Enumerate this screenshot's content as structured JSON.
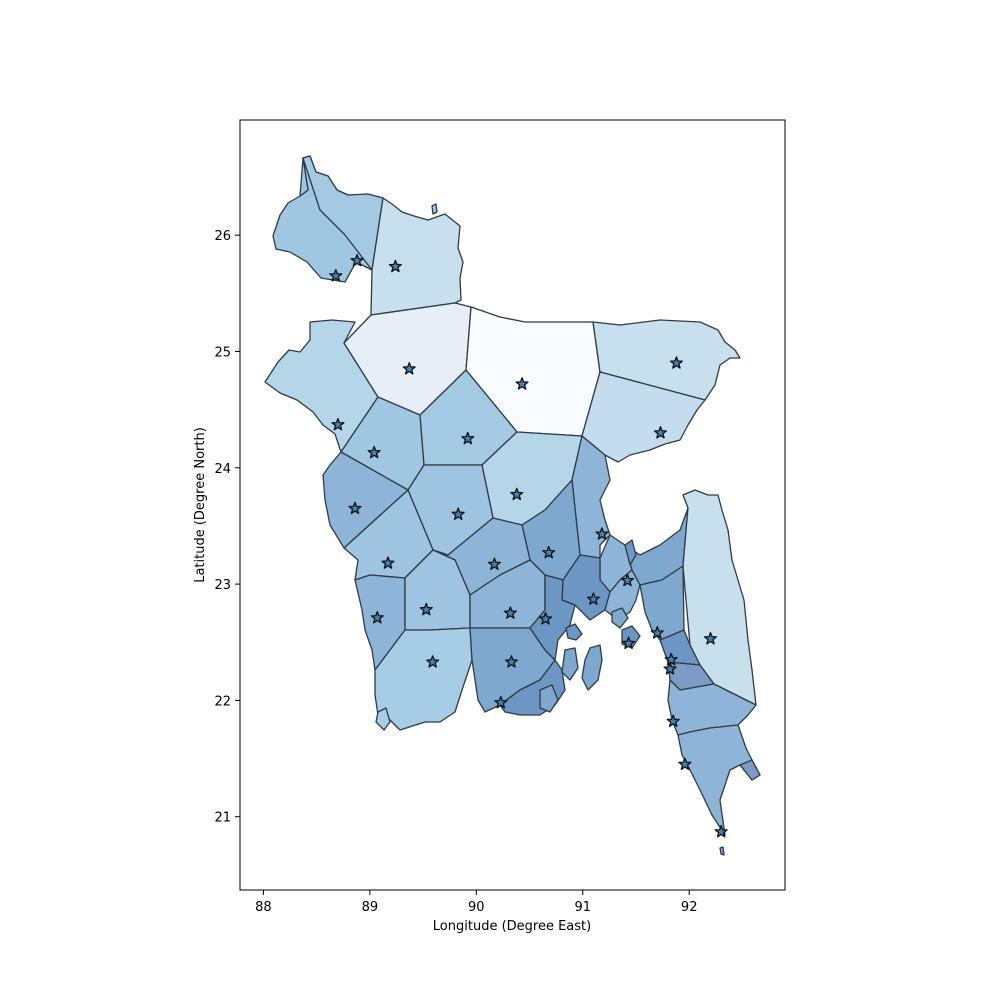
{
  "chart_data": {
    "type": "map",
    "xlabel": "Longitude (Degree East)",
    "ylabel": "Latitude (Degree North)",
    "xlim": [
      87.78,
      92.9
    ],
    "ylim": [
      20.37,
      26.99
    ],
    "xticks": [
      88,
      89,
      90,
      91,
      92
    ],
    "yticks": [
      21,
      22,
      23,
      24,
      25,
      26
    ],
    "grid": false,
    "legend": "none",
    "marker": "star",
    "marker_color": "#3d82b8",
    "stations": [
      {
        "lon": 88.68,
        "lat": 25.65
      },
      {
        "lon": 88.88,
        "lat": 25.78
      },
      {
        "lon": 89.24,
        "lat": 25.73
      },
      {
        "lon": 89.37,
        "lat": 24.85
      },
      {
        "lon": 90.43,
        "lat": 24.72
      },
      {
        "lon": 91.88,
        "lat": 24.9
      },
      {
        "lon": 91.73,
        "lat": 24.3
      },
      {
        "lon": 88.7,
        "lat": 24.37
      },
      {
        "lon": 89.04,
        "lat": 24.13
      },
      {
        "lon": 89.92,
        "lat": 24.25
      },
      {
        "lon": 90.38,
        "lat": 23.77
      },
      {
        "lon": 88.86,
        "lat": 23.65
      },
      {
        "lon": 89.83,
        "lat": 23.6
      },
      {
        "lon": 91.18,
        "lat": 23.43
      },
      {
        "lon": 90.68,
        "lat": 23.27
      },
      {
        "lon": 89.17,
        "lat": 23.18
      },
      {
        "lon": 90.17,
        "lat": 23.17
      },
      {
        "lon": 91.42,
        "lat": 23.03
      },
      {
        "lon": 91.1,
        "lat": 22.87
      },
      {
        "lon": 89.07,
        "lat": 22.71
      },
      {
        "lon": 89.53,
        "lat": 22.78
      },
      {
        "lon": 90.32,
        "lat": 22.75
      },
      {
        "lon": 90.65,
        "lat": 22.7
      },
      {
        "lon": 91.7,
        "lat": 22.58
      },
      {
        "lon": 92.2,
        "lat": 22.53
      },
      {
        "lon": 91.43,
        "lat": 22.49
      },
      {
        "lon": 89.59,
        "lat": 22.33
      },
      {
        "lon": 90.33,
        "lat": 22.33
      },
      {
        "lon": 91.83,
        "lat": 22.35
      },
      {
        "lon": 91.82,
        "lat": 22.27
      },
      {
        "lon": 90.23,
        "lat": 21.98
      },
      {
        "lon": 91.85,
        "lat": 21.82
      },
      {
        "lon": 91.96,
        "lat": 21.45
      },
      {
        "lon": 92.3,
        "lat": 20.87
      }
    ]
  }
}
